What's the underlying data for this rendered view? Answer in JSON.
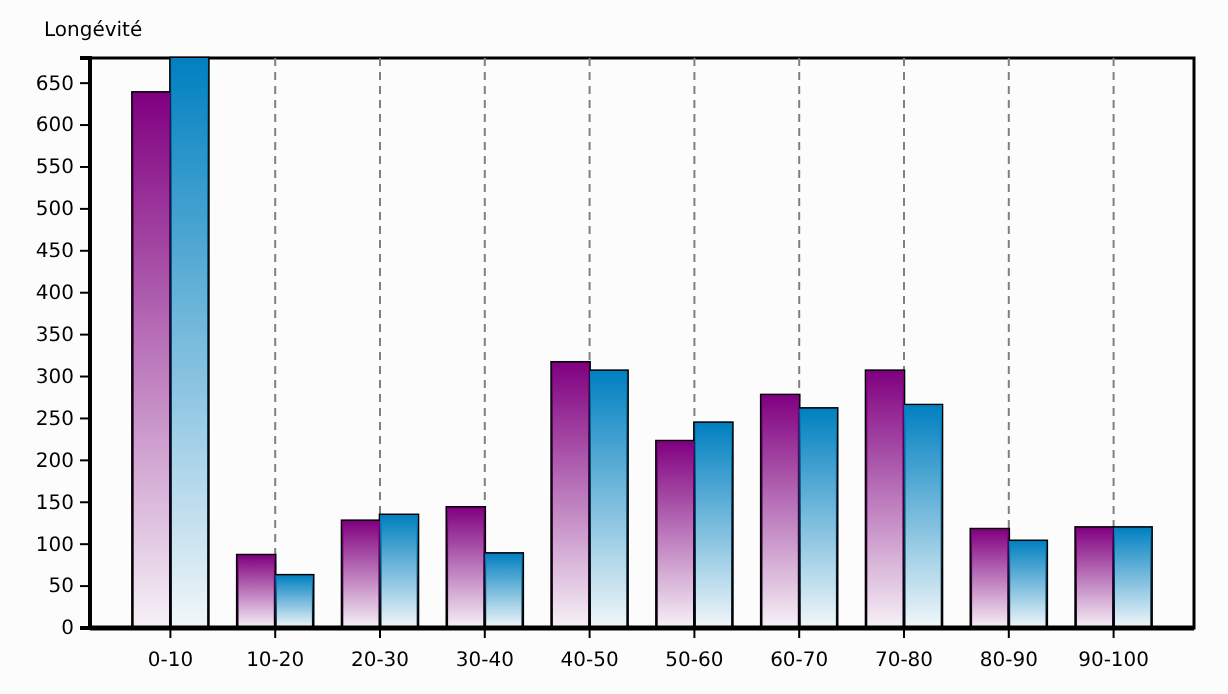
{
  "chart_data": {
    "type": "bar",
    "ylabel": "Longévité",
    "categories": [
      "0-10",
      "10-20",
      "20-30",
      "30-40",
      "40-50",
      "50-60",
      "60-70",
      "70-80",
      "80-90",
      "90-100"
    ],
    "series": [
      {
        "color": "#800080",
        "values": [
          639,
          87,
          128,
          144,
          317,
          223,
          278,
          307,
          118,
          120
        ]
      },
      {
        "color": "#0080c0",
        "values": [
          680,
          63,
          135,
          89,
          307,
          245,
          262,
          266,
          104,
          120
        ]
      }
    ],
    "ylim": [
      0,
      680
    ],
    "yticks": [
      0,
      50,
      100,
      150,
      200,
      250,
      300,
      350,
      400,
      450,
      500,
      550,
      600,
      650
    ],
    "grid": "x"
  }
}
